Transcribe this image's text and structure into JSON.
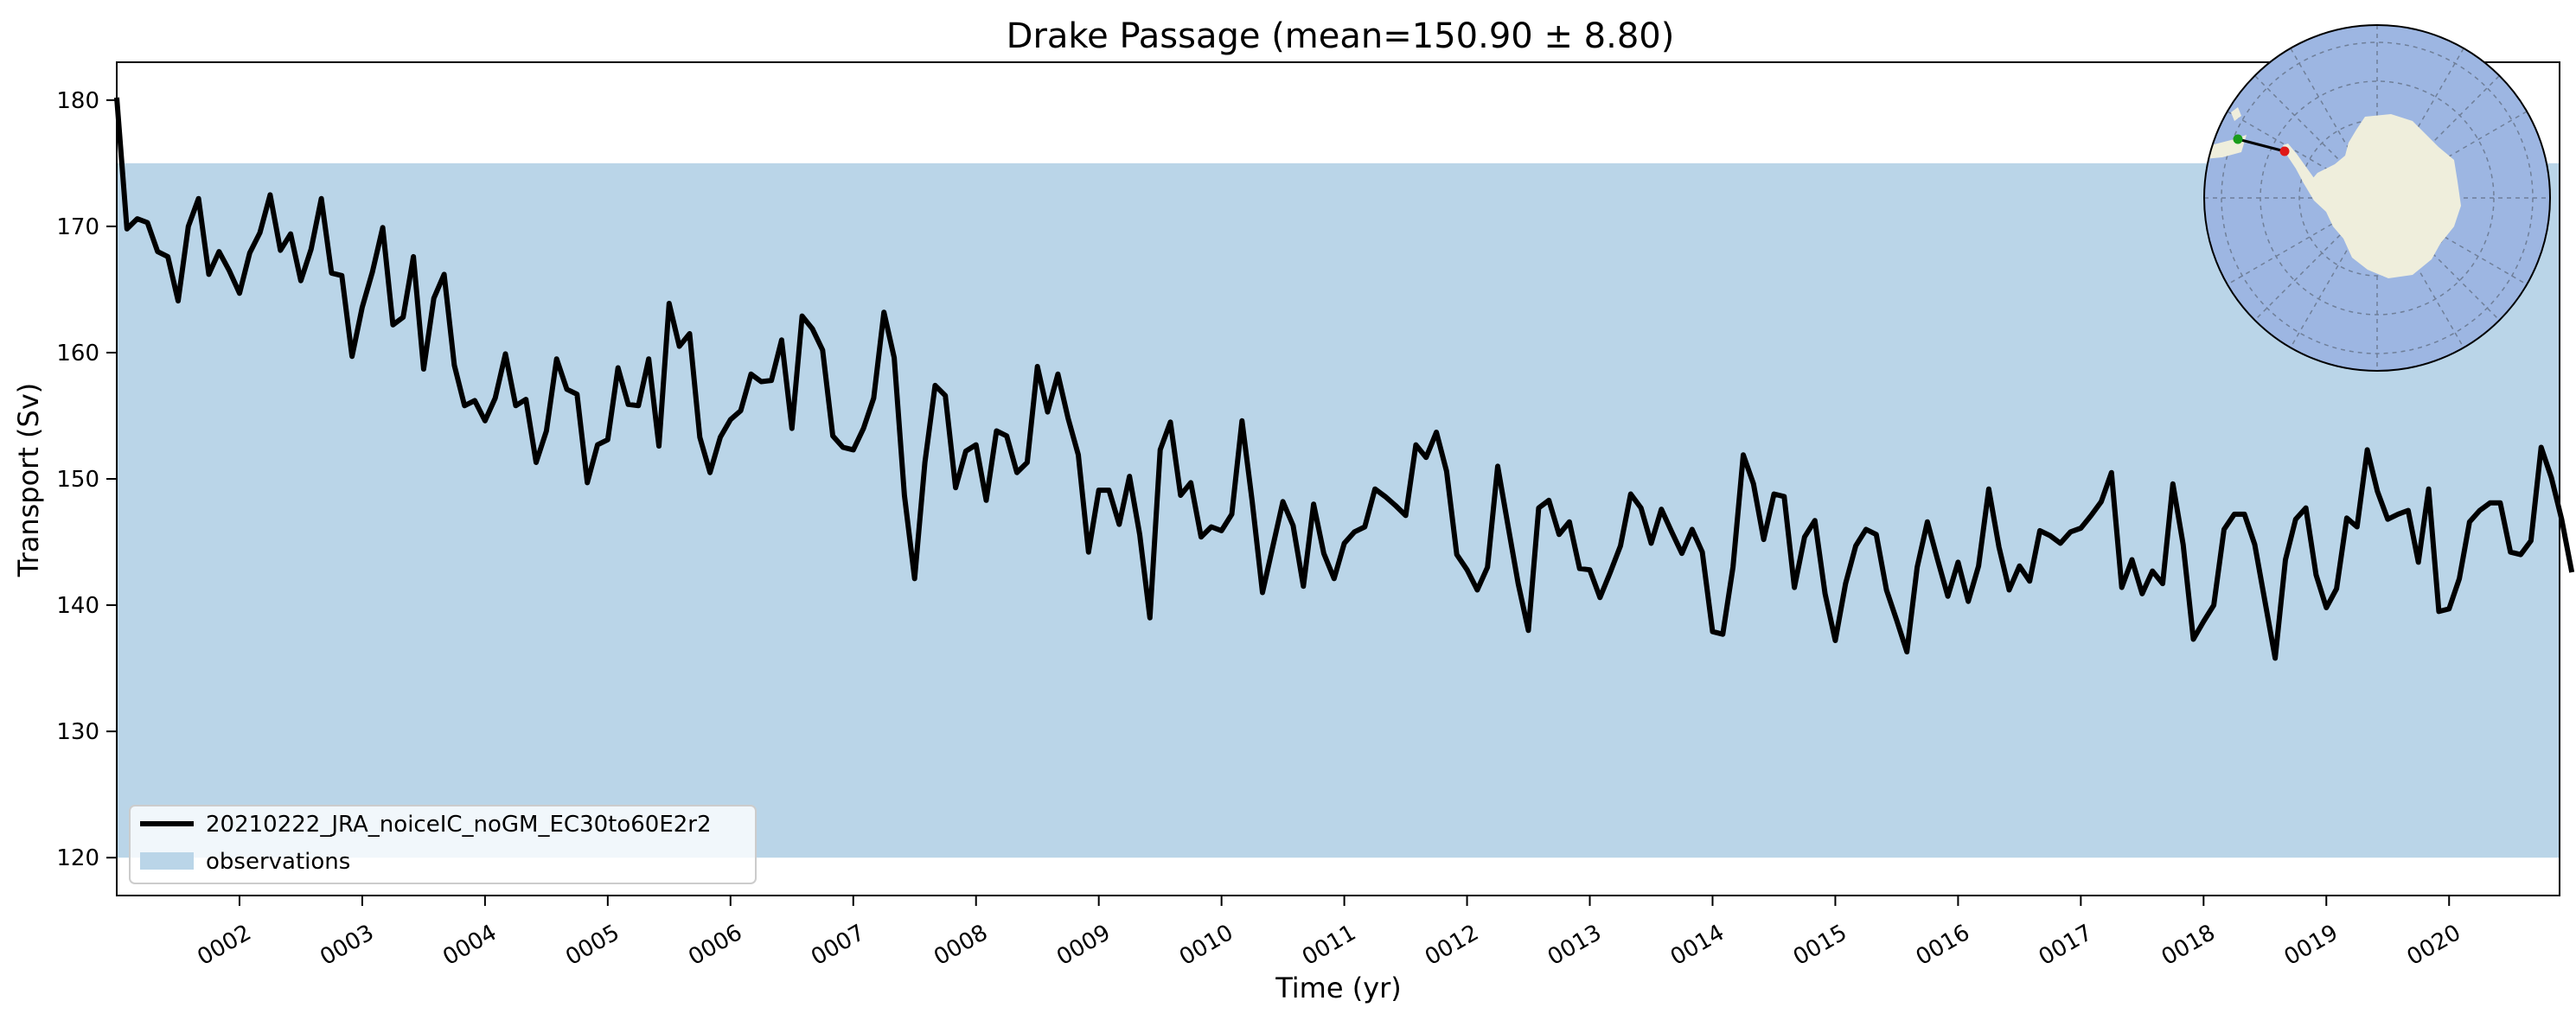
{
  "chart_data": {
    "type": "line",
    "title": "Drake Passage (mean=150.90 ± 8.80)",
    "xlabel": "Time (yr)",
    "ylabel": "Transport (Sv)",
    "xlim": [
      1.0,
      20.9
    ],
    "ylim": [
      117,
      183
    ],
    "x_ticks": [
      2,
      3,
      4,
      5,
      6,
      7,
      8,
      9,
      10,
      11,
      12,
      13,
      14,
      15,
      16,
      17,
      18,
      19,
      20
    ],
    "x_tick_labels": [
      "0002",
      "0003",
      "0004",
      "0005",
      "0006",
      "0007",
      "0008",
      "0009",
      "0010",
      "0011",
      "0012",
      "0013",
      "0014",
      "0015",
      "0016",
      "0017",
      "0018",
      "0019",
      "0020"
    ],
    "y_ticks": [
      120,
      130,
      140,
      150,
      160,
      170,
      180
    ],
    "y_tick_labels": [
      "120",
      "130",
      "140",
      "150",
      "160",
      "170",
      "180"
    ],
    "grid": false,
    "legend_position": "lower-left",
    "observations_band": {
      "name": "observations",
      "ymin": 120,
      "ymax": 175,
      "color": "#bad5e8"
    },
    "series": [
      {
        "name": "20210222_JRA_noiceIC_noGM_EC30to60E2r2",
        "color": "#000000",
        "start_year": 1.0,
        "step": 0.0833333,
        "values": [
          180.2,
          169.8,
          170.6,
          170.3,
          168.0,
          167.6,
          164.1,
          170.0,
          172.2,
          166.2,
          168.0,
          166.5,
          164.7,
          167.9,
          169.5,
          172.5,
          168.1,
          169.4,
          165.7,
          168.2,
          172.2,
          166.3,
          166.1,
          159.7,
          163.6,
          166.4,
          169.9,
          162.2,
          162.8,
          167.6,
          158.7,
          164.3,
          166.2,
          159.0,
          155.8,
          156.2,
          154.6,
          156.4,
          159.9,
          155.8,
          156.3,
          151.3,
          153.8,
          159.5,
          157.1,
          156.7,
          149.7,
          152.7,
          153.1,
          158.8,
          155.9,
          155.8,
          159.5,
          152.6,
          163.9,
          160.5,
          161.5,
          153.3,
          150.5,
          153.3,
          154.7,
          155.4,
          158.3,
          157.7,
          157.8,
          161.0,
          154.0,
          162.9,
          161.9,
          160.2,
          153.4,
          152.5,
          152.3,
          154.0,
          156.4,
          163.2,
          159.6,
          148.7,
          142.1,
          151.3,
          157.4,
          156.6,
          149.3,
          152.2,
          152.7,
          148.3,
          153.8,
          153.4,
          150.5,
          151.3,
          158.9,
          155.3,
          158.3,
          154.8,
          151.9,
          144.2,
          149.1,
          149.1,
          146.4,
          150.2,
          145.6,
          139.0,
          152.3,
          154.5,
          148.7,
          149.7,
          145.4,
          146.2,
          145.9,
          147.2,
          154.6,
          148.2,
          141.0,
          144.6,
          148.2,
          146.3,
          141.5,
          148.0,
          144.1,
          142.1,
          144.9,
          145.8,
          146.2,
          149.2,
          148.6,
          147.9,
          147.1,
          152.7,
          151.7,
          153.7,
          150.6,
          144.0,
          142.8,
          141.2,
          143.0,
          151.0,
          146.3,
          141.7,
          138.0,
          147.7,
          148.3,
          145.6,
          146.6,
          142.9,
          142.8,
          140.6,
          142.6,
          144.7,
          148.8,
          147.7,
          144.9,
          147.6,
          145.8,
          144.1,
          146.0,
          144.2,
          137.9,
          137.7,
          143.0,
          151.9,
          149.6,
          145.2,
          148.8,
          148.6,
          141.4,
          145.4,
          146.7,
          140.9,
          137.2,
          141.7,
          144.7,
          146.0,
          145.6,
          141.2,
          138.8,
          136.3,
          143.0,
          146.6,
          143.6,
          140.7,
          143.4,
          140.3,
          143.1,
          149.2,
          144.6,
          141.2,
          143.1,
          141.9,
          145.9,
          145.5,
          144.9,
          145.8,
          146.1,
          147.1,
          148.2,
          150.5,
          141.4,
          143.6,
          140.9,
          142.7,
          141.7,
          149.6,
          144.8,
          137.3,
          138.7,
          140.0,
          146.0,
          147.2,
          147.2,
          144.8,
          140.3,
          135.8,
          143.6,
          146.8,
          147.7,
          142.4,
          139.8,
          141.3,
          146.9,
          146.2,
          152.3,
          149.0,
          146.8,
          147.2,
          147.5,
          143.4,
          149.2,
          139.5,
          139.7,
          142.1,
          146.6,
          147.5,
          148.1,
          148.1,
          144.2,
          144.0,
          145.1,
          152.5,
          150.1,
          146.8,
          142.6
        ]
      }
    ]
  }
}
